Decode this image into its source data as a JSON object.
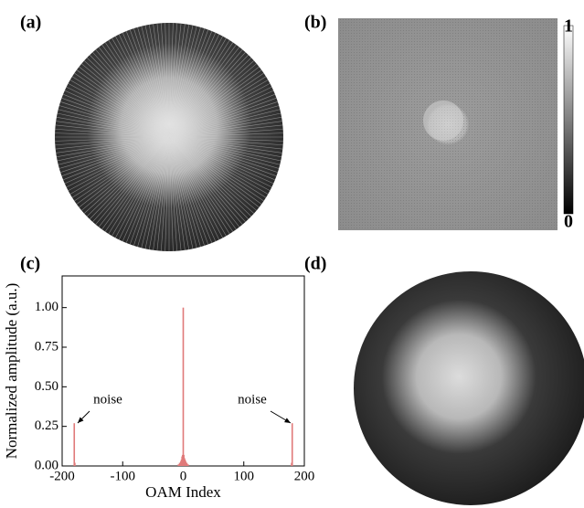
{
  "panels": {
    "a": "(a)",
    "b": "(b)",
    "d": "(d)"
  },
  "colorbar": {
    "ticks": [
      1,
      0
    ]
  },
  "chart_data": {
    "type": "bar",
    "title": "(c)",
    "color": "#e07a7a",
    "x": [
      -180,
      -179,
      -8,
      -6,
      -4,
      -3,
      -2,
      -1,
      0,
      1,
      2,
      3,
      4,
      6,
      8,
      179,
      180
    ],
    "values": [
      0.27,
      0.02,
      0.01,
      0.02,
      0.03,
      0.04,
      0.06,
      0.07,
      1.0,
      0.07,
      0.05,
      0.04,
      0.03,
      0.02,
      0.01,
      0.02,
      0.27
    ],
    "xlabel": "OAM Index",
    "ylabel": "Normalized amplitude (a.u.)",
    "xlim": [
      -200,
      200
    ],
    "xticks": [
      -200,
      -100,
      0,
      100,
      200
    ],
    "ylim": [
      0,
      1.2
    ],
    "yticks": [
      {
        "value": 0,
        "label": "0.00"
      },
      {
        "value": 0.25,
        "label": "0.25"
      },
      {
        "value": 0.5,
        "label": "0.50"
      },
      {
        "value": 0.75,
        "label": "0.75"
      },
      {
        "value": 1.0,
        "label": "1.00"
      }
    ],
    "annotations": [
      "noise",
      "noise"
    ]
  }
}
